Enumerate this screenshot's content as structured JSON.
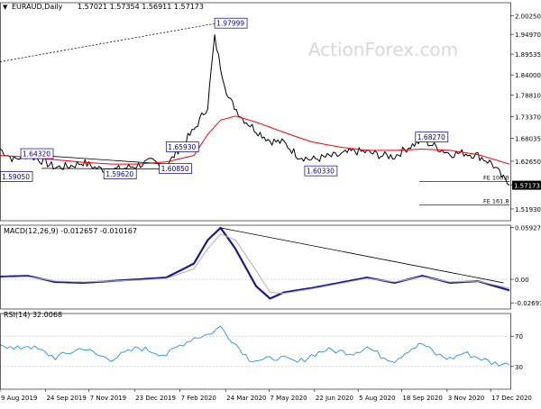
{
  "header": {
    "symbol": "EURAUD,Daily",
    "ohlc": "1.57021 1.57354 1.56911 1.57173"
  },
  "watermark": "ActionForex.com",
  "colors": {
    "price": "#000000",
    "ma": "#ff0000",
    "macd": "#1a1a8c",
    "signal": "#b0b0b0",
    "rsi": "#1e90ff",
    "box_border": "#00008b",
    "box_text": "#00008b",
    "current_price_bg": "#000000",
    "grid": "#bdbdbd"
  },
  "chart_data": [
    {
      "type": "line",
      "panel": "price",
      "title": "EURAUD,Daily 1.57021 1.57354 1.56911 1.57173",
      "ylim": [
        1.494,
        2.04
      ],
      "y_scale": "log",
      "yticks": [
        "2.00250",
        "1.94970",
        "1.89535",
        "1.84000",
        "1.78810",
        "1.73370",
        "1.68035",
        "1.62650",
        "1.57173",
        "1.51930"
      ],
      "current_price": "1.57173",
      "series": [
        {
          "name": "",
          "style": "price",
          "x": [
            "2019-08-09",
            "2019-08-23",
            "2019-09-06",
            "2019-09-20",
            "2019-10-04",
            "2019-10-18",
            "2019-11-01",
            "2019-11-15",
            "2019-11-29",
            "2019-12-13",
            "2019-12-27",
            "2020-01-10",
            "2020-01-24",
            "2020-02-07",
            "2020-02-21",
            "2020-03-06",
            "2020-03-13",
            "2020-03-19",
            "2020-03-27",
            "2020-04-10",
            "2020-04-24",
            "2020-05-08",
            "2020-05-22",
            "2020-06-05",
            "2020-06-19",
            "2020-07-03",
            "2020-07-17",
            "2020-07-31",
            "2020-08-14",
            "2020-08-28",
            "2020-09-11",
            "2020-09-25",
            "2020-10-09",
            "2020-10-23",
            "2020-11-06",
            "2020-11-20",
            "2020-12-04",
            "2020-12-18",
            "2021-01-01",
            "2021-01-05"
          ],
          "y": [
            1.655,
            1.63,
            1.642,
            1.628,
            1.612,
            1.615,
            1.624,
            1.61,
            1.606,
            1.61,
            1.618,
            1.626,
            1.612,
            1.66,
            1.7,
            1.76,
            1.94,
            1.86,
            1.78,
            1.73,
            1.7,
            1.675,
            1.67,
            1.64,
            1.63,
            1.636,
            1.64,
            1.65,
            1.648,
            1.64,
            1.638,
            1.66,
            1.676,
            1.66,
            1.644,
            1.646,
            1.64,
            1.622,
            1.58,
            1.572
          ]
        },
        {
          "name": "",
          "style": "ma",
          "x": [
            "2019-08-09",
            "2019-09-06",
            "2019-10-04",
            "2019-11-01",
            "2019-11-29",
            "2019-12-27",
            "2020-01-24",
            "2020-02-21",
            "2020-03-06",
            "2020-03-19",
            "2020-04-03",
            "2020-04-24",
            "2020-05-22",
            "2020-06-19",
            "2020-07-17",
            "2020-08-14",
            "2020-09-11",
            "2020-10-09",
            "2020-11-06",
            "2020-12-04",
            "2021-01-05"
          ],
          "y": [
            1.64,
            1.636,
            1.63,
            1.624,
            1.62,
            1.62,
            1.625,
            1.64,
            1.69,
            1.725,
            1.735,
            1.72,
            1.695,
            1.672,
            1.66,
            1.652,
            1.652,
            1.655,
            1.652,
            1.642,
            1.62
          ]
        }
      ],
      "boxes": [
        {
          "label": "1.97999",
          "x": "2020-03-13",
          "y": 1.97999
        },
        {
          "label": "1.64320",
          "x": "2019-08-30",
          "y": 1.6432
        },
        {
          "label": "1.65930",
          "x": "2020-01-24",
          "y": 1.6593
        },
        {
          "label": "1.59050",
          "x": "2019-08-09",
          "y": 1.5905
        },
        {
          "label": "1.59620",
          "x": "2019-11-22",
          "y": 1.5962
        },
        {
          "label": "1.60850",
          "x": "2020-01-17",
          "y": 1.6085
        },
        {
          "label": "1.60330",
          "x": "2020-06-12",
          "y": 1.6033
        },
        {
          "label": "1.68270",
          "x": "2020-10-02",
          "y": 1.6827
        }
      ],
      "trend_lines": [
        {
          "style": "dotted",
          "x1": "2019-08-09",
          "y1": 1.875,
          "x2": "2020-03-13",
          "y2": 1.97999
        },
        {
          "style": "solid",
          "x1": "2019-08-30",
          "y1": 1.6432,
          "x2": "2020-01-24",
          "y2": 1.62
        },
        {
          "style": "solid",
          "x1": "2019-09-20",
          "y1": 1.61,
          "x2": "2020-01-17",
          "y2": 1.6085
        }
      ],
      "annotations": [
        {
          "label": "FE 100.0",
          "y": 1.58
        },
        {
          "label": "FE 161.8",
          "y": 1.528
        }
      ]
    },
    {
      "type": "line",
      "panel": "macd",
      "title": "MACD(12,26,9) -0.012657 -0.010167",
      "ylim": [
        -0.034,
        0.062
      ],
      "yticks": [
        "0.059272",
        "0.00",
        "-0.026978"
      ],
      "series": [
        {
          "name": "",
          "style": "macd",
          "x": [
            "2019-08-09",
            "2019-09-06",
            "2019-10-04",
            "2019-11-01",
            "2019-11-29",
            "2019-12-27",
            "2020-01-24",
            "2020-02-21",
            "2020-03-06",
            "2020-03-19",
            "2020-04-03",
            "2020-04-24",
            "2020-05-08",
            "2020-05-22",
            "2020-06-19",
            "2020-07-17",
            "2020-08-14",
            "2020-09-11",
            "2020-10-09",
            "2020-11-06",
            "2020-12-04",
            "2021-01-05"
          ],
          "y": [
            0.003,
            0.004,
            -0.003,
            -0.004,
            -0.002,
            0.0,
            0.002,
            0.018,
            0.045,
            0.059,
            0.035,
            -0.008,
            -0.022,
            -0.015,
            -0.01,
            -0.004,
            0.002,
            -0.004,
            0.004,
            -0.004,
            -0.002,
            -0.012657
          ]
        },
        {
          "name": "",
          "style": "signal",
          "x": [
            "2019-08-09",
            "2019-09-06",
            "2019-10-04",
            "2019-11-01",
            "2019-11-29",
            "2019-12-27",
            "2020-01-24",
            "2020-02-21",
            "2020-03-06",
            "2020-03-19",
            "2020-04-03",
            "2020-04-24",
            "2020-05-08",
            "2020-05-22",
            "2020-06-19",
            "2020-07-17",
            "2020-08-14",
            "2020-09-11",
            "2020-10-09",
            "2020-11-06",
            "2020-12-04",
            "2021-01-05"
          ],
          "y": [
            0.002,
            0.003,
            -0.002,
            -0.003,
            -0.002,
            -0.001,
            0.001,
            0.012,
            0.035,
            0.052,
            0.045,
            0.01,
            -0.015,
            -0.016,
            -0.011,
            -0.005,
            0.001,
            -0.003,
            0.003,
            -0.003,
            -0.002,
            -0.010167
          ]
        }
      ],
      "trend_lines": [
        {
          "style": "solid",
          "x1": "2020-03-19",
          "y1": 0.059,
          "x2": "2020-12-30",
          "y2": -0.004
        }
      ]
    },
    {
      "type": "line",
      "panel": "rsi",
      "title": "RSI(14) 32.0068",
      "ylim": [
        0,
        100
      ],
      "yticks": [
        "70",
        "30"
      ],
      "series": [
        {
          "name": "",
          "style": "rsi",
          "x": [
            "2019-08-09",
            "2019-08-23",
            "2019-09-06",
            "2019-09-20",
            "2019-10-04",
            "2019-10-18",
            "2019-11-01",
            "2019-11-15",
            "2019-11-29",
            "2019-12-13",
            "2019-12-27",
            "2020-01-10",
            "2020-01-24",
            "2020-02-07",
            "2020-02-21",
            "2020-03-06",
            "2020-03-19",
            "2020-04-03",
            "2020-04-17",
            "2020-05-01",
            "2020-05-15",
            "2020-06-05",
            "2020-06-19",
            "2020-07-03",
            "2020-07-17",
            "2020-07-31",
            "2020-08-14",
            "2020-08-28",
            "2020-09-11",
            "2020-09-25",
            "2020-10-09",
            "2020-10-23",
            "2020-11-06",
            "2020-11-20",
            "2020-12-04",
            "2020-12-18",
            "2021-01-05"
          ],
          "y": [
            62,
            52,
            58,
            50,
            42,
            48,
            55,
            45,
            40,
            47,
            55,
            50,
            45,
            58,
            68,
            72,
            82,
            60,
            40,
            38,
            42,
            35,
            45,
            52,
            50,
            48,
            56,
            44,
            38,
            52,
            60,
            46,
            40,
            48,
            42,
            35,
            32
          ]
        }
      ]
    }
  ],
  "x_axis": {
    "labels": [
      {
        "text": "9 Aug 2019",
        "date": "2019-08-09"
      },
      {
        "text": "24 Sep 2019",
        "date": "2019-09-24"
      },
      {
        "text": "7 Nov 2019",
        "date": "2019-11-07"
      },
      {
        "text": "23 Dec 2019",
        "date": "2019-12-23"
      },
      {
        "text": "7 Feb 2020",
        "date": "2020-02-07"
      },
      {
        "text": "24 Mar 2020",
        "date": "2020-03-24"
      },
      {
        "text": "7 May 2020",
        "date": "2020-05-07"
      },
      {
        "text": "22 Jun 2020",
        "date": "2020-06-22"
      },
      {
        "text": "5 Aug 2020",
        "date": "2020-08-05"
      },
      {
        "text": "18 Sep 2020",
        "date": "2020-09-18"
      },
      {
        "text": "3 Nov 2020",
        "date": "2020-11-03"
      },
      {
        "text": "17 Dec 2020",
        "date": "2020-12-17"
      }
    ],
    "range": [
      "2019-08-09",
      "2021-01-05"
    ]
  }
}
